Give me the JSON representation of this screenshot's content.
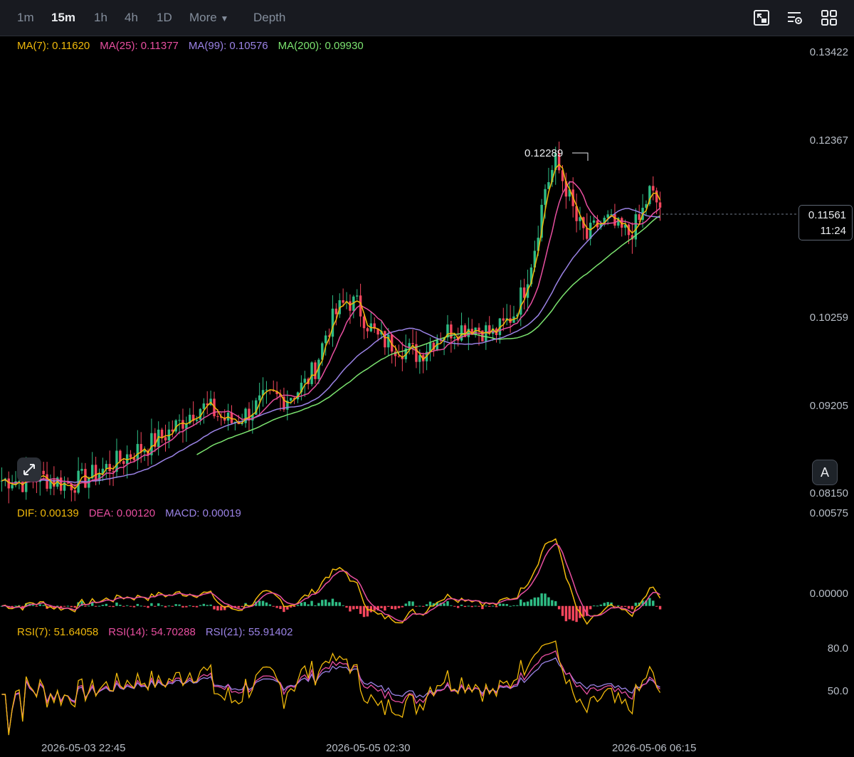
{
  "toolbar": {
    "intervals": [
      "1m",
      "15m",
      "1h",
      "4h",
      "1D"
    ],
    "active_interval": "15m",
    "more_label": "More",
    "depth_label": "Depth",
    "icons": [
      "chart-settings-icon",
      "indicator-settings-icon",
      "layout-grid-icon"
    ]
  },
  "ma_legend": {
    "ma7": "MA(7): 0.11620",
    "ma25": "MA(25): 0.11377",
    "ma99": "MA(99): 0.10576",
    "ma200": "MA(200): 0.09930"
  },
  "macd_legend": {
    "dif": "DIF: 0.00139",
    "dea": "DEA: 0.00120",
    "macd": "MACD: 0.00019"
  },
  "rsi_legend": {
    "rsi7": "RSI(7): 51.64058",
    "rsi14": "RSI(14): 54.70288",
    "rsi21": "RSI(21): 55.91402"
  },
  "price_axis": [
    "0.13422",
    "0.12367",
    "0.10259",
    "0.09205",
    "0.08150"
  ],
  "macd_axis": [
    "0.00575",
    "0.00000"
  ],
  "rsi_axis": [
    "80.0",
    "50.0"
  ],
  "time_axis": [
    "2026-05-03 22:45",
    "2026-05-05 02:30",
    "2026-05-06 06:15"
  ],
  "current_price": "0.11561",
  "countdown": "11:24",
  "peak_label": "0.12289",
  "auto_button": "A",
  "colors": {
    "up": "#2ebd85",
    "down": "#f6465d",
    "ma7": "#f0b90b",
    "ma25": "#e84fa0",
    "ma99": "#9b83e6",
    "ma200": "#7be36f",
    "background": "#000000"
  },
  "chart_data": {
    "type": "line",
    "title": "",
    "interval": "15m",
    "price_range": [
      0.0815,
      0.13422
    ],
    "series": [
      {
        "name": "MA(7)",
        "last": 0.1162
      },
      {
        "name": "MA(25)",
        "last": 0.11377
      },
      {
        "name": "MA(99)",
        "last": 0.10576
      },
      {
        "name": "MA(200)",
        "last": 0.0993
      }
    ],
    "close_approx": [
      0.083,
      0.0832,
      0.0828,
      0.0835,
      0.0833,
      0.083,
      0.0826,
      0.0828,
      0.0832,
      0.0838,
      0.0845,
      0.0852,
      0.086,
      0.0866,
      0.0872,
      0.088,
      0.0888,
      0.0898,
      0.091,
      0.0918,
      0.0915,
      0.0905,
      0.09,
      0.0906,
      0.0915,
      0.0925,
      0.093,
      0.0928,
      0.0935,
      0.0945,
      0.0965,
      0.1005,
      0.103,
      0.1045,
      0.104,
      0.1018,
      0.1,
      0.0995,
      0.099,
      0.0985,
      0.098,
      0.0995,
      0.1005,
      0.101,
      0.1012,
      0.1015,
      0.101,
      0.1005,
      0.1015,
      0.103,
      0.106,
      0.111,
      0.118,
      0.121,
      0.118,
      0.114,
      0.112,
      0.1135,
      0.114,
      0.113,
      0.1125,
      0.114,
      0.1175,
      0.1156
    ],
    "peak": 0.12289,
    "current": 0.11561,
    "macd": {
      "dif": 0.00139,
      "dea": 0.0012,
      "hist": 0.00019,
      "range": [
        -0.0009,
        0.00575
      ]
    },
    "rsi": {
      "rsi7": 51.64058,
      "rsi14": 54.70288,
      "rsi21": 55.91402,
      "levels": [
        80,
        50
      ]
    },
    "time_labels": [
      "2026-05-03 22:45",
      "2026-05-05 02:30",
      "2026-05-06 06:15"
    ]
  }
}
